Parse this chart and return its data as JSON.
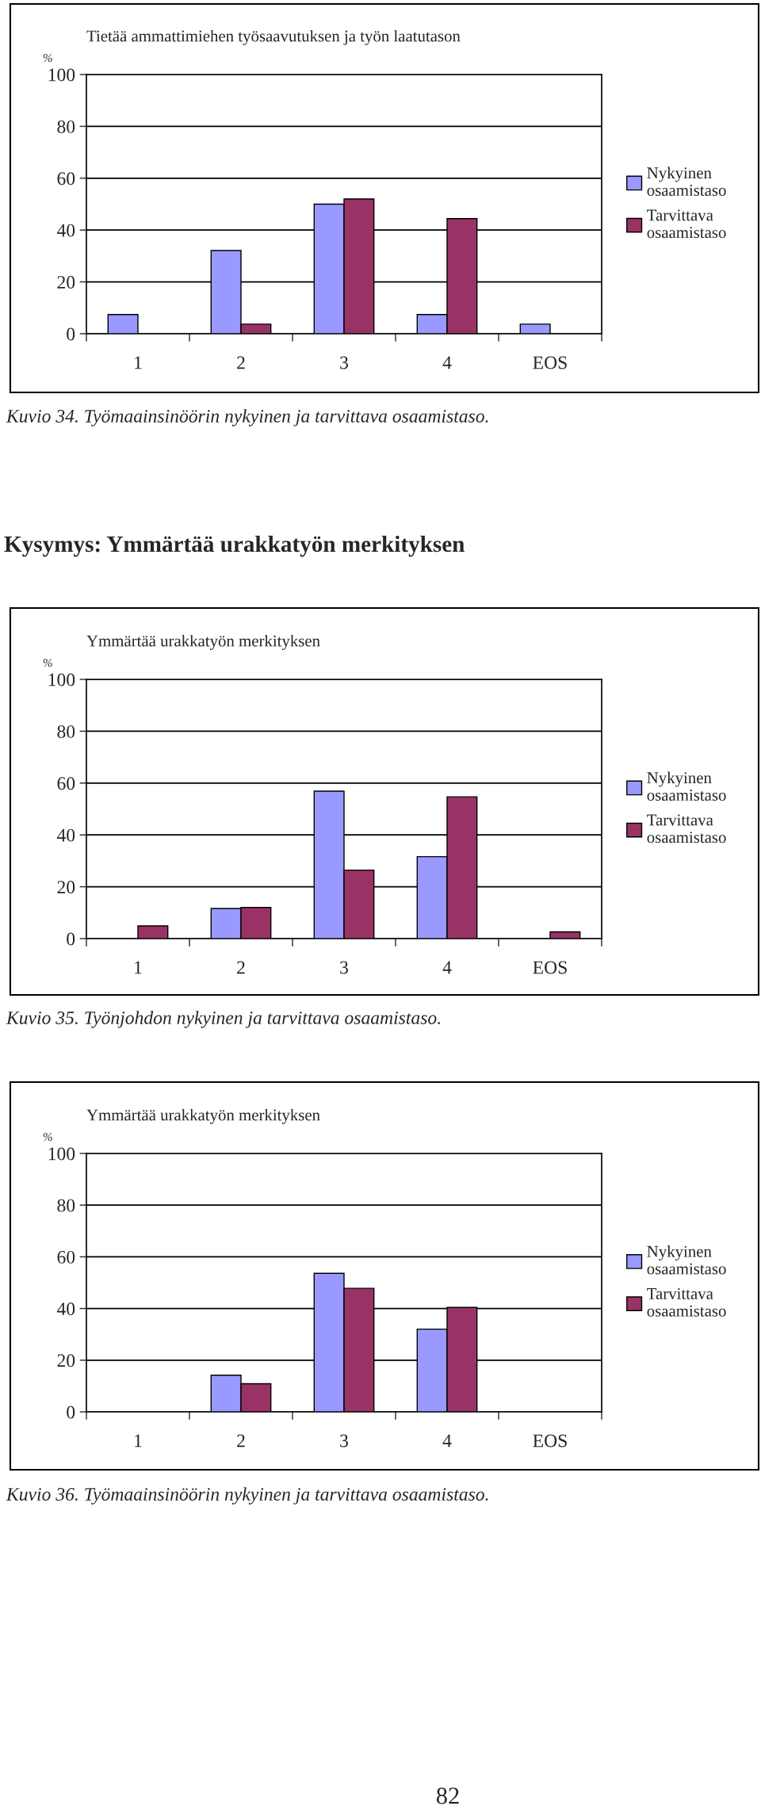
{
  "chart_data": [
    {
      "type": "bar",
      "title": "Tietää ammattimiehen työsaavutuksen ja työn laatutason",
      "ylabel": "%",
      "categories": [
        "1",
        "2",
        "3",
        "4",
        "EOS"
      ],
      "ylim": [
        0,
        100
      ],
      "yticks": [
        0,
        20,
        40,
        60,
        80,
        100
      ],
      "grid": "y",
      "legend": "right",
      "series": [
        {
          "name": "Nykyinen osaamistaso",
          "color": "#9999ff",
          "values": [
            7.4,
            32.1,
            50,
            7.4,
            3.7
          ]
        },
        {
          "name": "Tarvittava osaamistaso",
          "color": "#993366",
          "values": [
            0,
            3.7,
            52,
            44.4,
            0
          ]
        }
      ],
      "annotations": [
        "Kuvio 34. Työmaainsinöörin nykyinen ja tarvittava osaamistaso."
      ]
    },
    {
      "type": "bar",
      "title": "Ymmärtää urakkatyön merkityksen",
      "ylabel": "%",
      "categories": [
        "1",
        "2",
        "3",
        "4",
        "EOS"
      ],
      "ylim": [
        0,
        100
      ],
      "yticks": [
        0,
        20,
        40,
        60,
        80,
        100
      ],
      "grid": "y",
      "legend": "right",
      "series": [
        {
          "name": "Nykyinen osaamistaso",
          "color": "#9999ff",
          "values": [
            0,
            11.6,
            56.9,
            31.6,
            0
          ]
        },
        {
          "name": "Tarvittava osaamistaso",
          "color": "#993366",
          "values": [
            4.9,
            12,
            26.4,
            54.7,
            2.6
          ]
        }
      ],
      "annotations": [
        "Kysymys: Ymmärtää urakkatyön merkityksen",
        "Kuvio 35. Työnjohdon nykyinen ja tarvittava osaamistaso."
      ]
    },
    {
      "type": "bar",
      "title": "Ymmärtää urakkatyön merkityksen",
      "ylabel": "%",
      "categories": [
        "1",
        "2",
        "3",
        "4",
        "EOS"
      ],
      "ylim": [
        0,
        100
      ],
      "yticks": [
        0,
        20,
        40,
        60,
        80,
        100
      ],
      "grid": "y",
      "legend": "right",
      "series": [
        {
          "name": "Nykyinen osaamistaso",
          "color": "#9999ff",
          "values": [
            0,
            14.2,
            53.6,
            32,
            0
          ]
        },
        {
          "name": "Tarvittava osaamistaso",
          "color": "#993366",
          "values": [
            0,
            10.9,
            47.8,
            40.4,
            0
          ]
        }
      ],
      "annotations": [
        "Kuvio 36. Työmaainsinöörin nykyinen ja tarvittava osaamistaso.",
        "82"
      ]
    }
  ]
}
